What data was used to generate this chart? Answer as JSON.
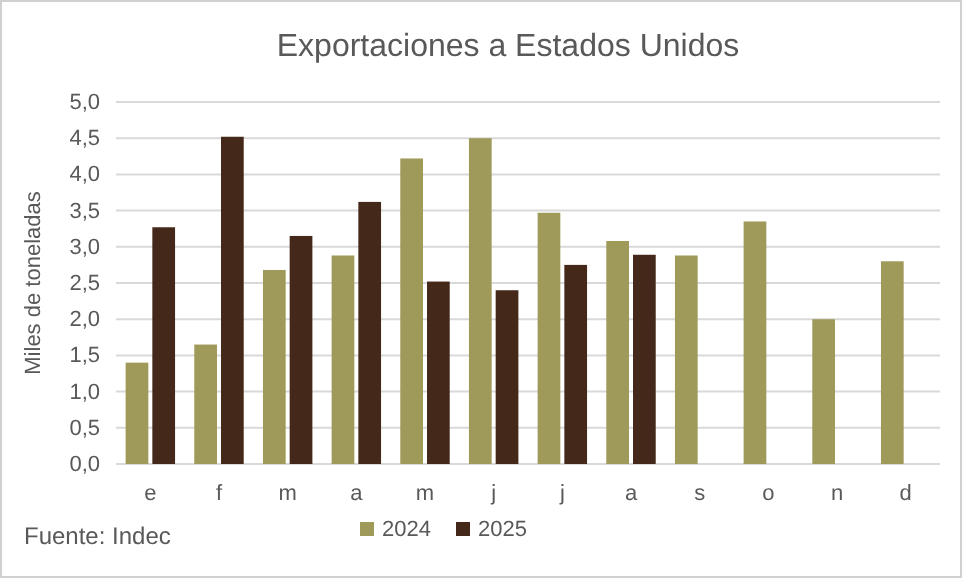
{
  "chart_data": {
    "type": "bar",
    "title": "Exportaciones a Estados Unidos",
    "ylabel": "Miles de toneladas",
    "categories": [
      "e",
      "f",
      "m",
      "a",
      "m",
      "j",
      "j",
      "a",
      "s",
      "o",
      "n",
      "d"
    ],
    "series": [
      {
        "name": "2024",
        "color": "#a09a5a",
        "values": [
          1.4,
          1.65,
          2.68,
          2.88,
          4.22,
          4.5,
          3.47,
          3.08,
          2.88,
          3.35,
          2.0,
          2.8
        ]
      },
      {
        "name": "2025",
        "color": "#44291a",
        "values": [
          3.27,
          4.52,
          3.15,
          3.62,
          2.52,
          2.4,
          2.75,
          2.89,
          null,
          null,
          null,
          null
        ]
      }
    ],
    "ylim": [
      0,
      5
    ],
    "yticks": [
      {
        "value": 0,
        "label": "0,0"
      },
      {
        "value": 0.5,
        "label": "0,5"
      },
      {
        "value": 1,
        "label": "1,0"
      },
      {
        "value": 1.5,
        "label": "1,5"
      },
      {
        "value": 2,
        "label": "2,0"
      },
      {
        "value": 2.5,
        "label": "2,5"
      },
      {
        "value": 3,
        "label": "3,0"
      },
      {
        "value": 3.5,
        "label": "3,5"
      },
      {
        "value": 4,
        "label": "4,0"
      },
      {
        "value": 4.5,
        "label": "4,5"
      },
      {
        "value": 5,
        "label": "5,0"
      }
    ],
    "grid": "y",
    "legend": "bottom",
    "annotations": [
      "Fuente: Indec"
    ]
  }
}
